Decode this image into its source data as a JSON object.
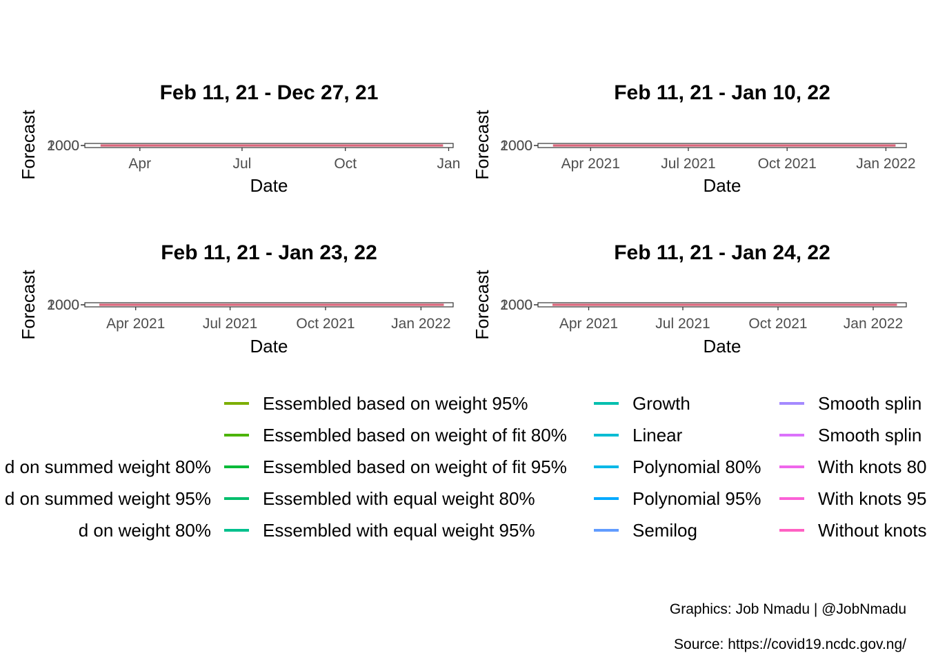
{
  "chart_data": [
    {
      "type": "line",
      "title": "Feb 11, 21 - Dec 27, 21",
      "xlabel": "Date",
      "ylabel": "Forecast",
      "xlim": [
        "2021-02-11",
        "2022-01-05"
      ],
      "x_range_data": [
        "2021-02-25",
        "2021-12-27"
      ],
      "x_ticks": [
        {
          "date": "2021-04-01",
          "label": "Apr"
        },
        {
          "date": "2021-07-01",
          "label": "Jul"
        },
        {
          "date": "2021-10-01",
          "label": "Oct"
        },
        {
          "date": "2022-01-01",
          "label": "Jan"
        }
      ],
      "y_tick_labels": [
        "2000",
        "1000"
      ],
      "y_value": 2000
    },
    {
      "type": "line",
      "title": "Feb 11, 21 - Jan 10, 22",
      "xlabel": "Date",
      "ylabel": "Forecast",
      "xlim": [
        "2021-02-11",
        "2022-01-20"
      ],
      "x_range_data": [
        "2021-02-25",
        "2022-01-10"
      ],
      "x_ticks": [
        {
          "date": "2021-04-01",
          "label": "Apr 2021"
        },
        {
          "date": "2021-07-01",
          "label": "Jul 2021"
        },
        {
          "date": "2021-10-01",
          "label": "Oct 2021"
        },
        {
          "date": "2022-01-01",
          "label": "Jan 2022"
        }
      ],
      "y_tick_labels": [
        "2000",
        "1000"
      ],
      "y_value": 2000
    },
    {
      "type": "line",
      "title": "Feb 11, 21 - Jan 23, 22",
      "xlabel": "Date",
      "ylabel": "Forecast",
      "xlim": [
        "2021-02-11",
        "2022-02-01"
      ],
      "x_range_data": [
        "2021-02-25",
        "2022-01-23"
      ],
      "x_ticks": [
        {
          "date": "2021-04-01",
          "label": "Apr 2021"
        },
        {
          "date": "2021-07-01",
          "label": "Jul 2021"
        },
        {
          "date": "2021-10-01",
          "label": "Oct 2021"
        },
        {
          "date": "2022-01-01",
          "label": "Jan 2022"
        }
      ],
      "y_tick_labels": [
        "2000",
        "1000"
      ],
      "y_value": 2000
    },
    {
      "type": "line",
      "title": "Feb 11, 21 - Jan 24, 22",
      "xlabel": "Date",
      "ylabel": "Forecast",
      "xlim": [
        "2021-02-11",
        "2022-02-02"
      ],
      "x_range_data": [
        "2021-02-25",
        "2022-01-24"
      ],
      "x_ticks": [
        {
          "date": "2021-04-01",
          "label": "Apr 2021"
        },
        {
          "date": "2021-07-01",
          "label": "Jul 2021"
        },
        {
          "date": "2021-10-01",
          "label": "Oct 2021"
        },
        {
          "date": "2022-01-01",
          "label": "Jan 2022"
        }
      ],
      "y_tick_labels": [
        "2000",
        "1000"
      ],
      "y_value": 2000
    }
  ],
  "legend": {
    "placement": "bottom",
    "columns": [
      [
        {
          "label": "d on summed weight 80%",
          "color": "#9AA800"
        },
        {
          "label": "d on summed weight 95%",
          "color": "#8DAB00"
        },
        {
          "label": "d on weight 80%",
          "color": "#7DAE00"
        }
      ],
      [
        {
          "label": "Essembled based on weight 95%",
          "color": "#7CAE00"
        },
        {
          "label": "Essembled based on weight of fit 80%",
          "color": "#4CB400"
        },
        {
          "label": "Essembled based on weight of fit 95%",
          "color": "#00BA38"
        },
        {
          "label": "Essembled with equal weight 80%",
          "color": "#00BE6C"
        },
        {
          "label": "Essembled with equal weight 95%",
          "color": "#00C08D"
        }
      ],
      [
        {
          "label": "Growth",
          "color": "#00BFAE"
        },
        {
          "label": "Linear",
          "color": "#00BCD3"
        },
        {
          "label": "Polynomial 80%",
          "color": "#00B8E7"
        },
        {
          "label": "Polynomial 95%",
          "color": "#00A9FF"
        },
        {
          "label": "Semilog",
          "color": "#619CFF"
        }
      ],
      [
        {
          "label": "Smooth splin",
          "color": "#A58AFF"
        },
        {
          "label": "Smooth splin",
          "color": "#DB72FB"
        },
        {
          "label": "With knots 80",
          "color": "#EF67EB"
        },
        {
          "label": "With knots 95",
          "color": "#FB61D7"
        },
        {
          "label": "Without knots",
          "color": "#FF61C3"
        }
      ]
    ]
  },
  "caption": {
    "credit": "Graphics: Job Nmadu | @JobNmadu",
    "source": "Source: https://covid19.ncdc.gov.ng/"
  }
}
